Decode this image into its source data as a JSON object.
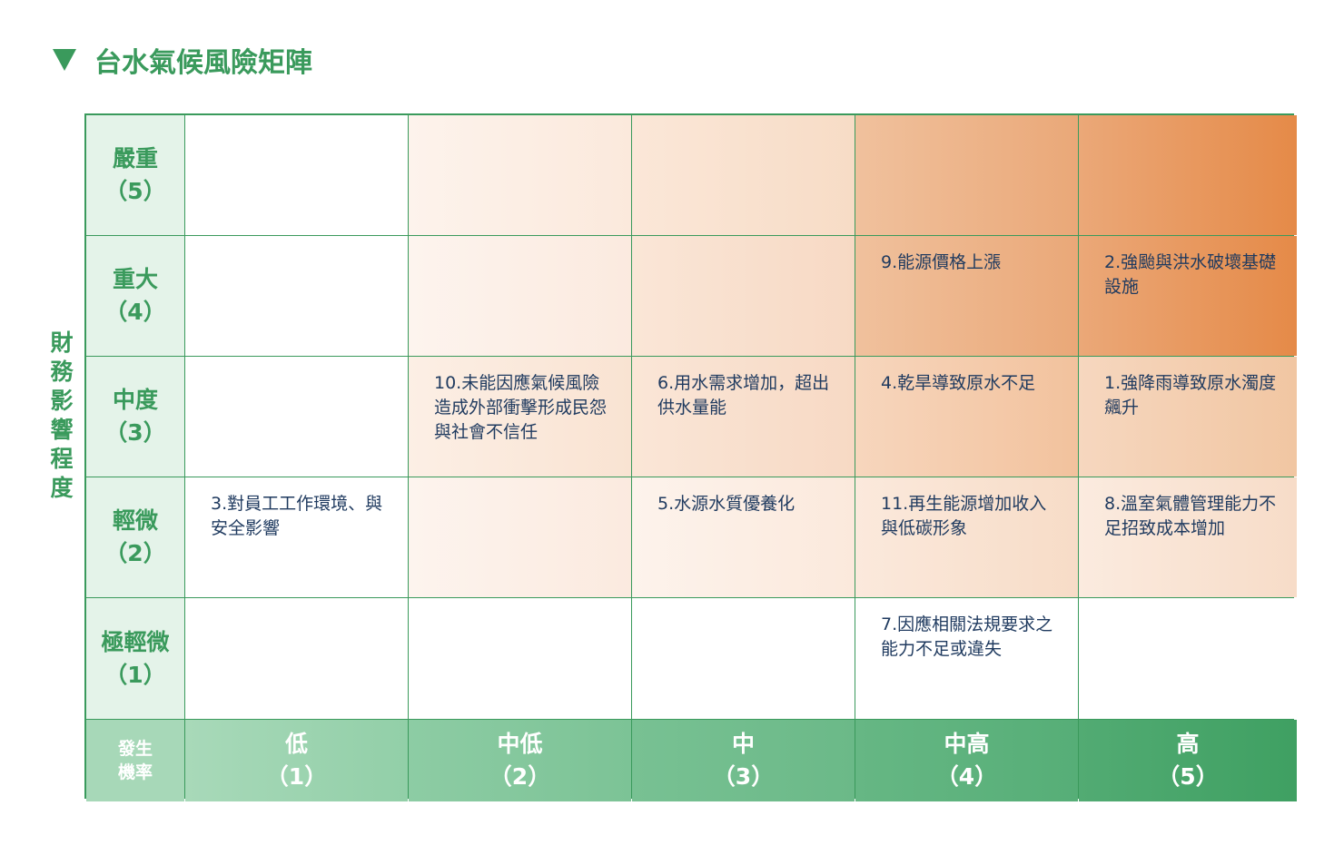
{
  "title": "台水氣候風險矩陣",
  "y_axis_label": "財務影響程度",
  "rows": [
    {
      "label": "嚴重",
      "level": "（5）"
    },
    {
      "label": "重大",
      "level": "（4）"
    },
    {
      "label": "中度",
      "level": "（3）"
    },
    {
      "label": "輕微",
      "level": "（2）"
    },
    {
      "label": "極輕微",
      "level": "（1）"
    }
  ],
  "corner": {
    "line1": "發生",
    "line2": "機率"
  },
  "columns": [
    {
      "label": "低",
      "level": "（1）"
    },
    {
      "label": "中低",
      "level": "（2）"
    },
    {
      "label": "中",
      "level": "（3）"
    },
    {
      "label": "中高",
      "level": "（4）"
    },
    {
      "label": "高",
      "level": "（5）"
    }
  ],
  "cells": [
    [
      "",
      "",
      "",
      "",
      ""
    ],
    [
      "",
      "",
      "",
      "9.能源價格上漲",
      "2.強颱與洪水破壞基礎設施"
    ],
    [
      "",
      "10.未能因應氣候風險造成外部衝擊形成民怨與社會不信任",
      "6.用水需求增加，超出供水量能",
      "4.乾旱導致原水不足",
      "1.強降雨導致原水濁度飆升"
    ],
    [
      "3.對員工工作環境、與安全影響",
      "",
      "5.水源水質優養化",
      "11.再生能源增加收入與低碳形象",
      "8.溫室氣體管理能力不足招致成本增加"
    ],
    [
      "",
      "",
      "",
      "7.因應相關法規要求之能力不足或違失",
      ""
    ]
  ],
  "colors": {
    "green": "#3a9a5c",
    "text": "#1f3a5f",
    "orange": "#e58a48"
  }
}
